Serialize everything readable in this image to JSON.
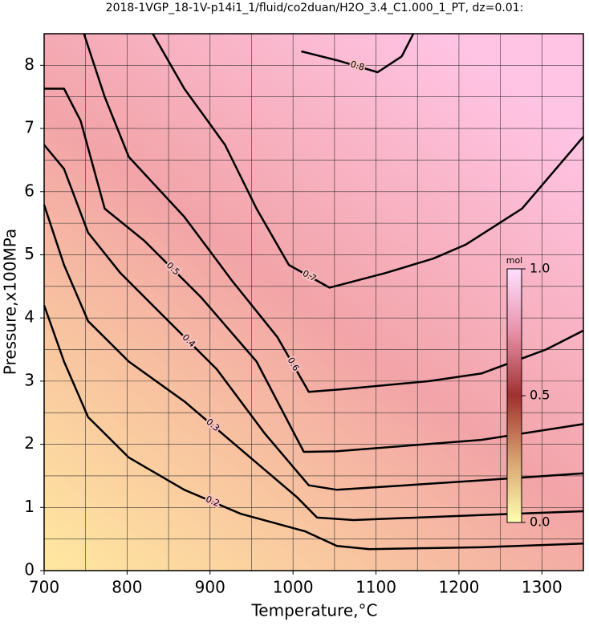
{
  "chart_data": {
    "type": "contour",
    "title": "2018-1VGP_18-1V-p14i1_1/fluid/co2duan/H2O_3.4_C1.000_1_PT, dz=0.01:",
    "x_label": "Temperature,°C",
    "y_label": "Pressure,x100MPa",
    "xlim": [
      700,
      1350
    ],
    "ylim": [
      0,
      8.5
    ],
    "xticks": [
      700,
      800,
      900,
      1000,
      1100,
      1200,
      1300
    ],
    "yticks": [
      0,
      1,
      2,
      3,
      4,
      5,
      6,
      7,
      8
    ],
    "xminorticks": [
      750,
      850,
      950,
      1050,
      1150,
      1250
    ],
    "yminorticks": [
      0.5,
      1.5,
      2.5,
      3.5,
      4.5,
      5.5,
      6.5,
      7.5
    ],
    "grid": true,
    "contours": [
      {
        "level": 0.2,
        "x": [
          700,
          724,
          753,
          802,
          869,
          937,
          1015,
          1053,
          1092,
          1227,
          1350
        ],
        "y": [
          4.2,
          3.31,
          2.43,
          1.79,
          1.28,
          0.9,
          0.62,
          0.39,
          0.34,
          0.37,
          0.43
        ]
      },
      {
        "level": 0.3,
        "x": [
          700,
          724,
          753,
          802,
          869,
          937,
          1005,
          1029,
          1073,
          1227,
          1350
        ],
        "y": [
          5.79,
          4.84,
          3.95,
          3.31,
          2.68,
          1.92,
          1.16,
          0.84,
          0.8,
          0.88,
          0.94
        ]
      },
      {
        "level": 0.4,
        "x": [
          700,
          724,
          753,
          792,
          840,
          908,
          966,
          1019,
          1053,
          1227,
          1350
        ],
        "y": [
          6.74,
          6.36,
          5.35,
          4.71,
          4.08,
          3.19,
          2.17,
          1.35,
          1.28,
          1.43,
          1.54
        ]
      },
      {
        "level": 0.5,
        "x": [
          700,
          724,
          744,
          773,
          821,
          889,
          956,
          1013,
          1053,
          1227,
          1350
        ],
        "y": [
          7.63,
          7.63,
          7.12,
          5.73,
          5.22,
          4.33,
          3.31,
          1.88,
          1.89,
          2.07,
          2.32
        ]
      },
      {
        "level": 0.6,
        "x": [
          748,
          773,
          802,
          869,
          927,
          981,
          1019,
          1058,
          1164,
          1227,
          1305,
          1350
        ],
        "y": [
          8.5,
          7.5,
          6.55,
          5.6,
          4.58,
          3.7,
          2.83,
          2.87,
          3.0,
          3.12,
          3.5,
          3.8
        ]
      },
      {
        "level": 0.7,
        "x": [
          831,
          869,
          918,
          956,
          995,
          1044,
          1111,
          1169,
          1208,
          1276,
          1350
        ],
        "y": [
          8.5,
          7.63,
          6.74,
          5.73,
          4.84,
          4.48,
          4.71,
          4.94,
          5.16,
          5.73,
          6.87
        ]
      },
      {
        "level": 0.8,
        "x": [
          1010,
          1053,
          1102,
          1131,
          1145
        ],
        "y": [
          8.22,
          8.08,
          7.89,
          8.14,
          8.5
        ]
      }
    ],
    "colorbar": {
      "label": "mol",
      "lim": [
        0,
        1
      ],
      "ticks": [
        {
          "value": 0,
          "label": "0.0"
        },
        0.5,
        {
          "value": 1,
          "label": "1.0"
        }
      ]
    }
  }
}
